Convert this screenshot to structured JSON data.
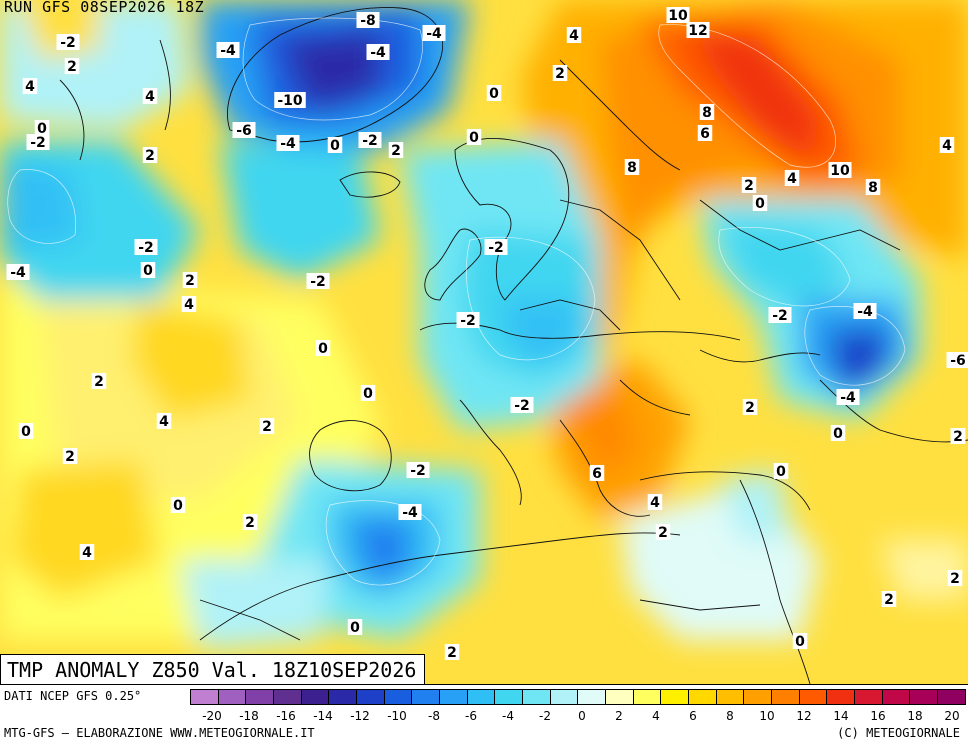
{
  "header": {
    "run_label": "RUN GFS 08SEP2026 18Z"
  },
  "title": {
    "main": "TMP ANOMALY Z850 Val. 18Z10SEP2026"
  },
  "footer": {
    "source": "DATI NCEP GFS 0.25°",
    "credit_left": "MTG-GFS — ELABORAZIONE WWW.METEOGIORNALE.IT",
    "credit_right": "(C) METEOGIORNALE"
  },
  "legend": {
    "colors": [
      "#c07fd0",
      "#a060c0",
      "#8040a8",
      "#603090",
      "#3c2090",
      "#2a2aa8",
      "#1e40c8",
      "#1a5ee0",
      "#2080f0",
      "#28a0f5",
      "#30bff5",
      "#40d6f0",
      "#70e6f4",
      "#b0f2f8",
      "#e0fbf8",
      "#ffffc0",
      "#ffff60",
      "#fff000",
      "#ffd800",
      "#ffbf00",
      "#ffa000",
      "#ff8000",
      "#ff5a00",
      "#f03010",
      "#d81830",
      "#c00848",
      "#a80058",
      "#900060"
    ],
    "ticks": [
      "-20",
      "-18",
      "-16",
      "-14",
      "-12",
      "-10",
      "-8",
      "-6",
      "-4",
      "-2",
      "0",
      "2",
      "4",
      "6",
      "8",
      "10",
      "12",
      "14",
      "16",
      "18",
      "20"
    ]
  },
  "map": {
    "contour_labels": [
      {
        "t": "-2"
      },
      {
        "t": "2"
      },
      {
        "t": "4"
      },
      {
        "t": "4"
      },
      {
        "t": "0"
      },
      {
        "t": "-2"
      },
      {
        "t": "2"
      },
      {
        "t": "-4"
      },
      {
        "t": "-8"
      },
      {
        "t": "-4"
      },
      {
        "t": "-4"
      },
      {
        "t": "-10"
      },
      {
        "t": "-6"
      },
      {
        "t": "-4"
      },
      {
        "t": "0"
      },
      {
        "t": "-2"
      },
      {
        "t": "2"
      },
      {
        "t": "0"
      },
      {
        "t": "0"
      },
      {
        "t": "2"
      },
      {
        "t": "4"
      },
      {
        "t": "10"
      },
      {
        "t": "12"
      },
      {
        "t": "8"
      },
      {
        "t": "6"
      },
      {
        "t": "8"
      },
      {
        "t": "10"
      },
      {
        "t": "8"
      },
      {
        "t": "4"
      },
      {
        "t": "2"
      },
      {
        "t": "0"
      },
      {
        "t": "4"
      },
      {
        "t": "-2"
      },
      {
        "t": "0"
      },
      {
        "t": "-4"
      },
      {
        "t": "2"
      },
      {
        "t": "4"
      },
      {
        "t": "-2"
      },
      {
        "t": "0"
      },
      {
        "t": "-2"
      },
      {
        "t": "-2"
      },
      {
        "t": "-2"
      },
      {
        "t": "0"
      },
      {
        "t": "2"
      },
      {
        "t": "4"
      },
      {
        "t": "2"
      },
      {
        "t": "0"
      },
      {
        "t": "2"
      },
      {
        "t": "-2"
      },
      {
        "t": "-4"
      },
      {
        "t": "-4"
      },
      {
        "t": "-6"
      },
      {
        "t": "0"
      },
      {
        "t": "2"
      },
      {
        "t": "0"
      },
      {
        "t": "2"
      },
      {
        "t": "-2"
      },
      {
        "t": "-4"
      },
      {
        "t": "6"
      },
      {
        "t": "4"
      },
      {
        "t": "2"
      },
      {
        "t": "0"
      },
      {
        "t": "0"
      },
      {
        "t": "2"
      },
      {
        "t": "0"
      },
      {
        "t": "4"
      },
      {
        "t": "2"
      },
      {
        "t": "0"
      },
      {
        "t": "2"
      },
      {
        "t": "2"
      },
      {
        "t": "2"
      }
    ]
  }
}
